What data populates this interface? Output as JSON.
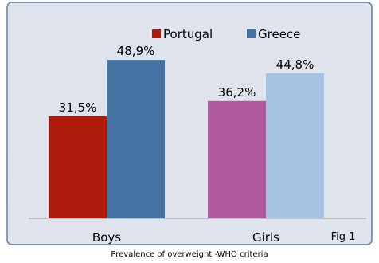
{
  "chart_data": {
    "type": "bar",
    "categories": [
      "Boys",
      "Girls"
    ],
    "series": [
      {
        "name": "Portugal",
        "values": [
          31.5,
          36.2
        ],
        "labels": [
          "31,5%",
          "36,2%"
        ]
      },
      {
        "name": "Greece",
        "values": [
          48.9,
          44.8
        ],
        "labels": [
          "48,9%",
          "44,8%"
        ]
      }
    ],
    "bar_colors": [
      [
        "#b01a0a",
        "#b15a9f"
      ],
      [
        "#4472a2",
        "#a5c2e3"
      ]
    ],
    "legend_colors": [
      "#b01a0a",
      "#4472a2"
    ],
    "legend_position": "top-center",
    "ylim": [
      0,
      60
    ],
    "grid": false,
    "figure_tag": "Fig 1",
    "caption": "Prevalence of overweight  -WHO criteria"
  },
  "colors": {
    "panel_fill": "#dfe4ec",
    "panel_border": "#5b7fa6",
    "axis_line": "#999999",
    "text": "#000000"
  }
}
